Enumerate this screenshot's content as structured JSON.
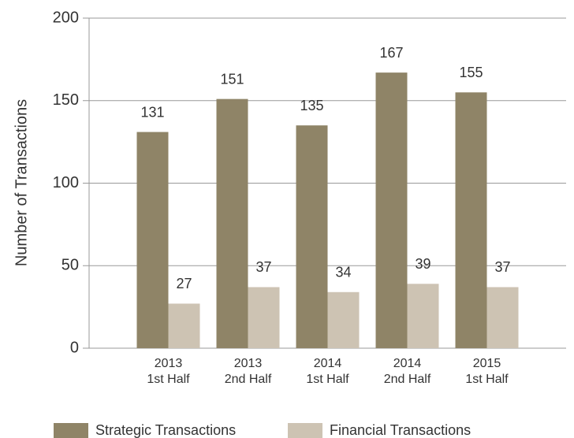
{
  "chart_data": {
    "type": "bar",
    "y_label": "Number of Transactions",
    "categories": [
      [
        "2013",
        "1st Half"
      ],
      [
        "2013",
        "2nd Half"
      ],
      [
        "2014",
        "1st Half"
      ],
      [
        "2014",
        "2nd Half"
      ],
      [
        "2015",
        "1st Half"
      ]
    ],
    "series": [
      {
        "name": "Strategic Transactions",
        "color": "#8f8467",
        "values": [
          131,
          151,
          135,
          167,
          155
        ]
      },
      {
        "name": "Financial Transactions",
        "color": "#cdc3b3",
        "values": [
          27,
          37,
          34,
          39,
          37
        ]
      }
    ],
    "ylim": [
      0,
      200
    ],
    "yticks": [
      0,
      50,
      100,
      150,
      200
    ],
    "grid": true
  }
}
